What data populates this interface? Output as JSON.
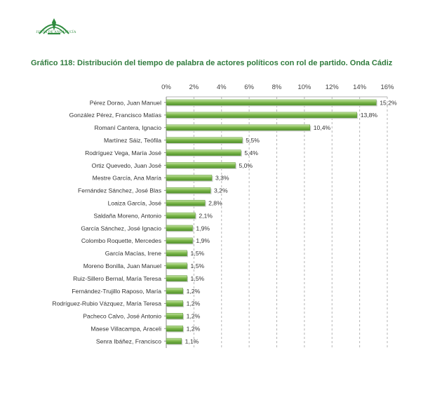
{
  "header": {
    "logo_text": "Junta de Andalucía",
    "brand_color": "#2e8b3e"
  },
  "chart_title": "Gráfico 118: Distribución del tiempo de palabra de actores políticos con rol de partido. Onda Cádiz",
  "chart_data": {
    "type": "bar",
    "orientation": "horizontal",
    "title": "Gráfico 118: Distribución del tiempo de palabra de actores políticos con rol de partido. Onda Cádiz",
    "categories": [
      "Pérez Dorao, Juan Manuel",
      "González Pérez, Francisco Matías",
      "Romaní Cantera, Ignacio",
      "Martínez Sáiz, Teófila",
      "Rodríguez Vega, María José",
      "Ortiz Quevedo, Juan José",
      "Mestre García, Ana María",
      "Fernández Sánchez, José Blas",
      "Loaiza García, José",
      "Saldaña Moreno, Antonio",
      "García Sánchez, José Ignacio",
      "Colombo Roquette, Mercedes",
      "García Macías, Irene",
      "Moreno Bonilla, Juan Manuel",
      "Ruiz-Sillero Bernal, María Teresa",
      "Fernández-Trujillo Raposo, María",
      "Rodríguez-Rubio Vázquez, María Teresa",
      "Pacheco Calvo, José Antonio",
      "Maese Villacampa, Araceli",
      "Senra Ibáñez, Francisco"
    ],
    "values": [
      15.2,
      13.8,
      10.4,
      5.5,
      5.4,
      5.0,
      3.3,
      3.2,
      2.8,
      2.1,
      1.9,
      1.9,
      1.5,
      1.5,
      1.5,
      1.2,
      1.2,
      1.2,
      1.2,
      1.1
    ],
    "value_labels": [
      "15,2%",
      "13,8%",
      "10,4%",
      "5,5%",
      "5,4%",
      "5,0%",
      "3,3%",
      "3,2%",
      "2,8%",
      "2,1%",
      "1,9%",
      "1,9%",
      "1,5%",
      "1,5%",
      "1,5%",
      "1,2%",
      "1,2%",
      "1,2%",
      "1,2%",
      "1,1%"
    ],
    "xlim": [
      0,
      16
    ],
    "x_ticks": [
      "0%",
      "2%",
      "4%",
      "6%",
      "8%",
      "10%",
      "12%",
      "14%",
      "16%"
    ],
    "x_axis_position": "top",
    "grid": "vertical dashed",
    "bar_color": "#7ab648"
  }
}
